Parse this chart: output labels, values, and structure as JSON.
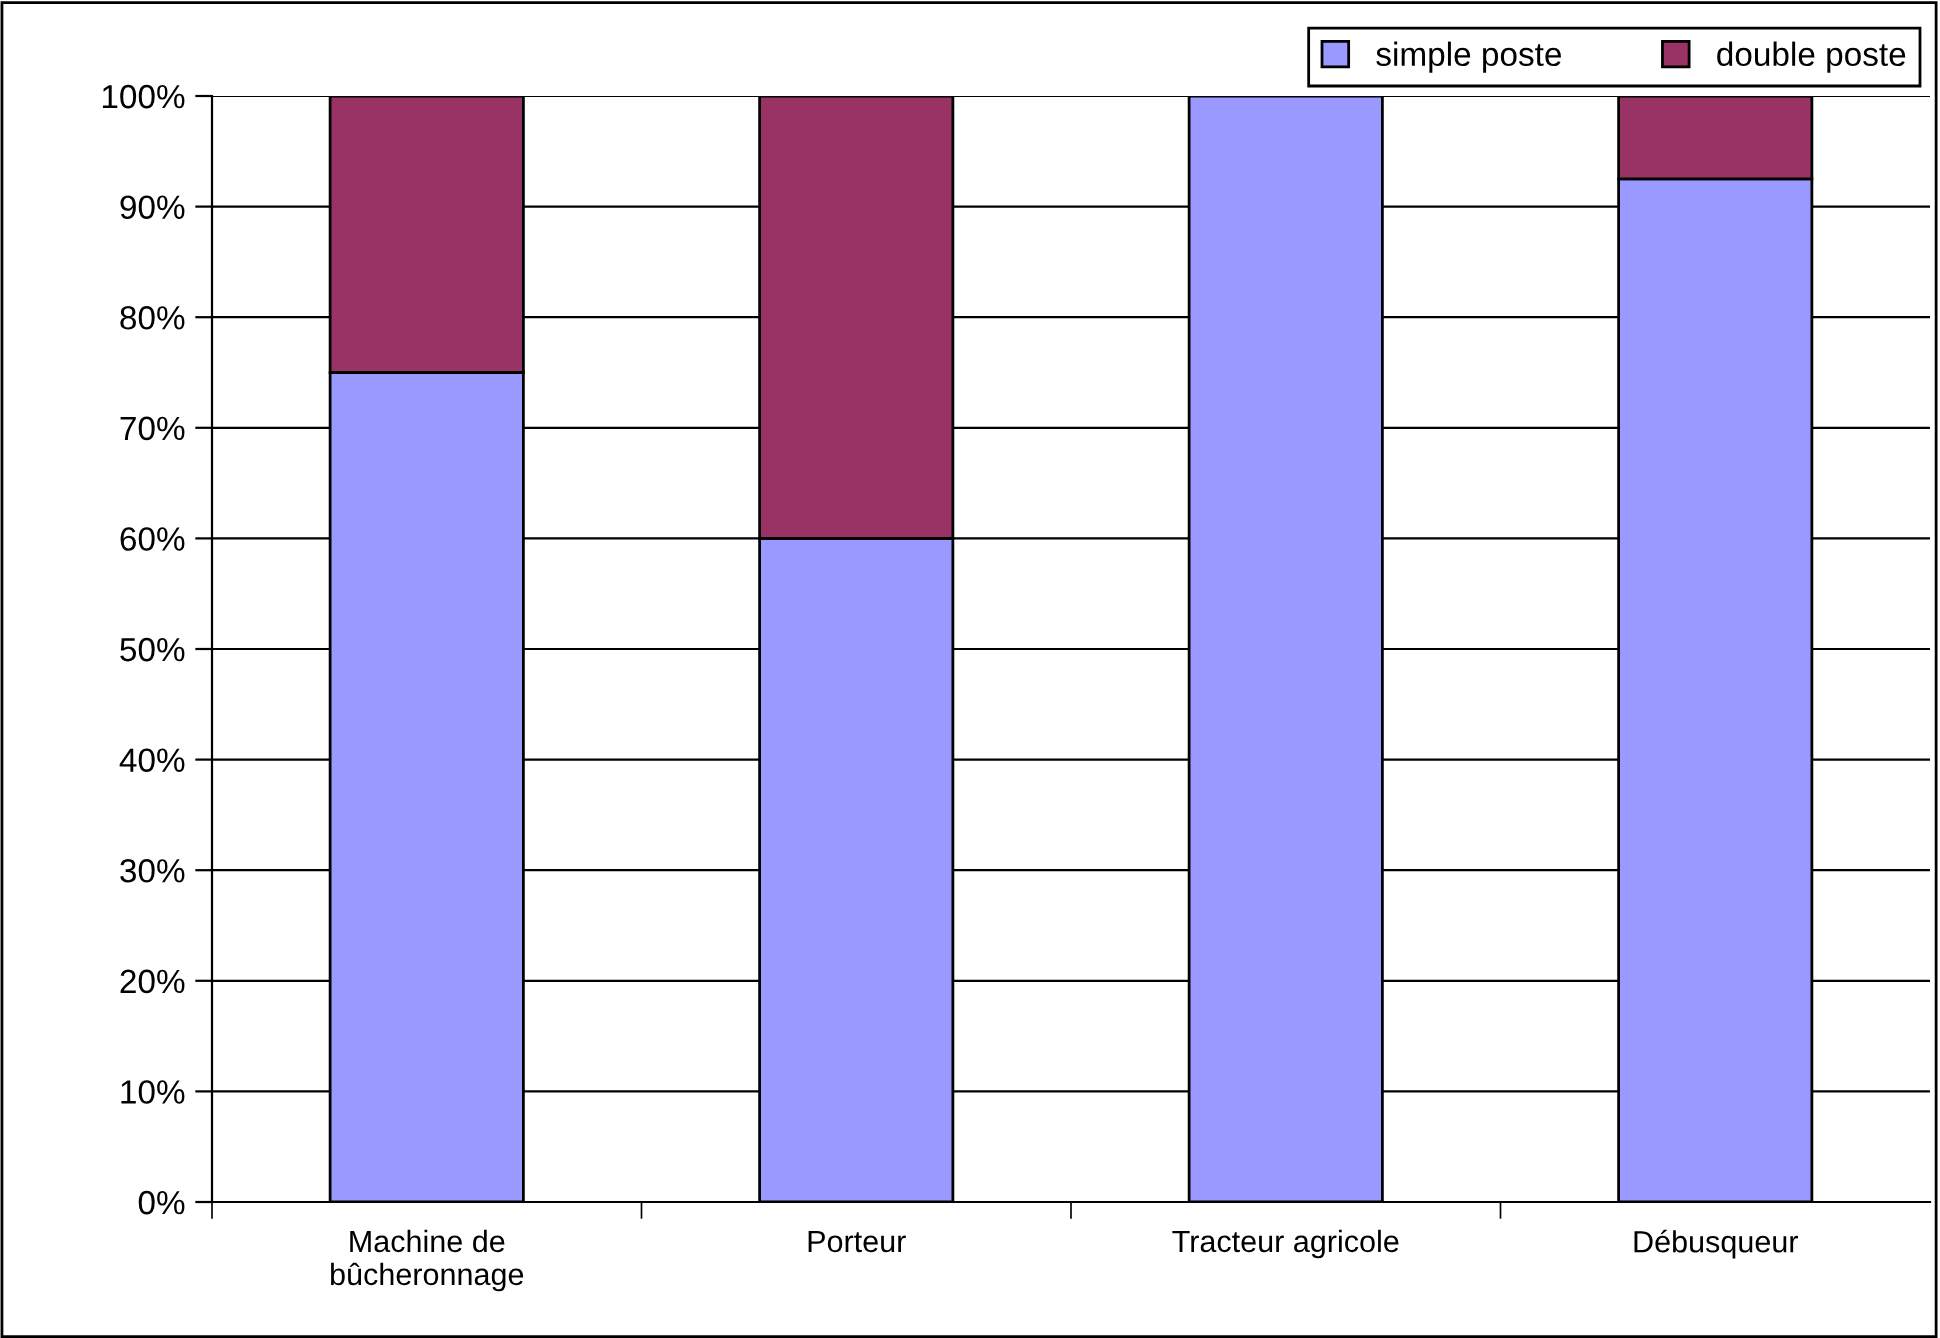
{
  "chart_data": {
    "type": "bar",
    "stacked": true,
    "categories": [
      "Machine de\nbûcheronnage",
      "Porteur",
      "Tracteur agricole",
      "Débusqueur"
    ],
    "series": [
      {
        "name": "simple poste",
        "color": "#9999ff",
        "values": [
          75,
          60,
          100,
          92.5
        ]
      },
      {
        "name": "double poste",
        "color": "#993366",
        "values": [
          25,
          40,
          null,
          7.5
        ]
      }
    ],
    "ylim": [
      0,
      100
    ],
    "yticks": [
      {
        "value": 0,
        "label": "0%"
      },
      {
        "value": 10,
        "label": "10%"
      },
      {
        "value": 20,
        "label": "20%"
      },
      {
        "value": 30,
        "label": "30%"
      },
      {
        "value": 40,
        "label": "40%"
      },
      {
        "value": 50,
        "label": "50%"
      },
      {
        "value": 60,
        "label": "60%"
      },
      {
        "value": 70,
        "label": "70%"
      },
      {
        "value": 80,
        "label": "80%"
      },
      {
        "value": 90,
        "label": "90%"
      },
      {
        "value": 100,
        "label": "100%"
      }
    ],
    "grid": "y",
    "legend": "top right"
  }
}
